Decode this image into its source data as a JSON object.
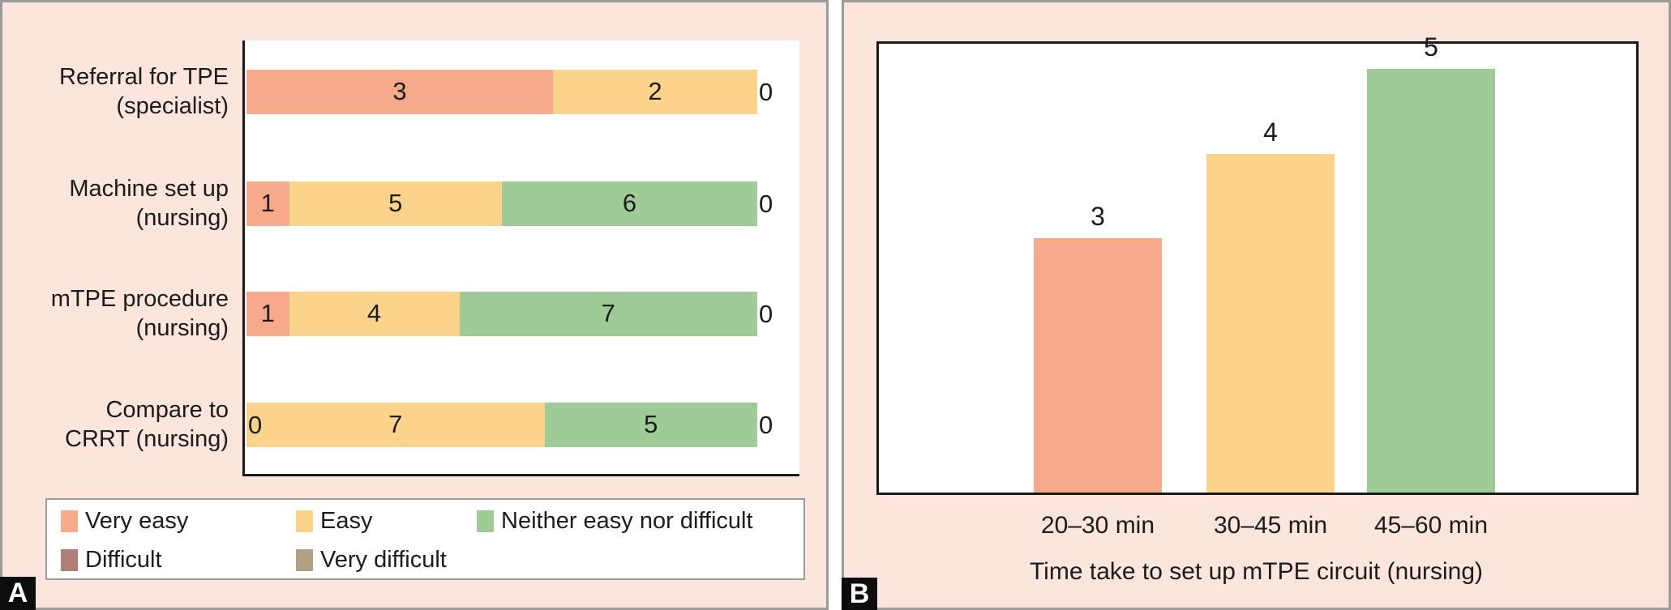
{
  "figure": {
    "panel_a": {
      "badge": "A"
    },
    "panel_b": {
      "badge": "B"
    }
  },
  "colors": {
    "panel_background": "#fce5dc",
    "panel_border": "#9b9b9b",
    "plot_background": "#ffffff",
    "axis_line": "#1a1a1a",
    "text": "#1c1c1c",
    "very_easy": "#f6a98b",
    "easy": "#fbd38a",
    "neither": "#9fcc96",
    "difficult": "#b08078",
    "very_difficult": "#b1a184"
  },
  "legend": {
    "items": [
      {
        "label": "Very easy",
        "color": "#f6a98b"
      },
      {
        "label": "Easy",
        "color": "#fbd38a"
      },
      {
        "label": "Neither easy nor difficult",
        "color": "#9fcc96"
      },
      {
        "label": "Difficult",
        "color": "#b08078"
      },
      {
        "label": "Very difficult",
        "color": "#b1a184"
      }
    ]
  },
  "chart_data": [
    {
      "type": "bar",
      "orientation": "horizontal",
      "stacked": true,
      "normalized": true,
      "panel": "A",
      "categories": [
        [
          "Referral for TPE",
          "(specialist)"
        ],
        [
          "Machine set up",
          "(nursing)"
        ],
        [
          "mTPE procedure",
          "(nursing)"
        ],
        [
          "Compare to",
          "CRRT (nursing)"
        ]
      ],
      "series": [
        {
          "name": "Very easy",
          "color": "#f6a98b",
          "values": [
            3,
            1,
            1,
            0
          ]
        },
        {
          "name": "Easy",
          "color": "#fbd38a",
          "values": [
            2,
            5,
            4,
            7
          ]
        },
        {
          "name": "Neither easy nor difficult",
          "color": "#9fcc96",
          "values": [
            0,
            6,
            7,
            5
          ]
        },
        {
          "name": "Difficult",
          "color": "#b08078",
          "values": [
            0,
            0,
            0,
            0
          ]
        },
        {
          "name": "Very difficult",
          "color": "#b1a184",
          "values": [
            0,
            0,
            0,
            0
          ]
        }
      ],
      "legend_position": "bottom",
      "grid": false
    },
    {
      "type": "bar",
      "orientation": "vertical",
      "panel": "B",
      "categories": [
        "20–30 min",
        "30–45 min",
        "45–60 min"
      ],
      "values": [
        3,
        4,
        5
      ],
      "colors": [
        "#f6a98b",
        "#fbd38a",
        "#9fcc96"
      ],
      "xlabel": "Time take to set up mTPE circuit (nursing)",
      "ylim": [
        0,
        5.3
      ],
      "grid": false
    }
  ]
}
